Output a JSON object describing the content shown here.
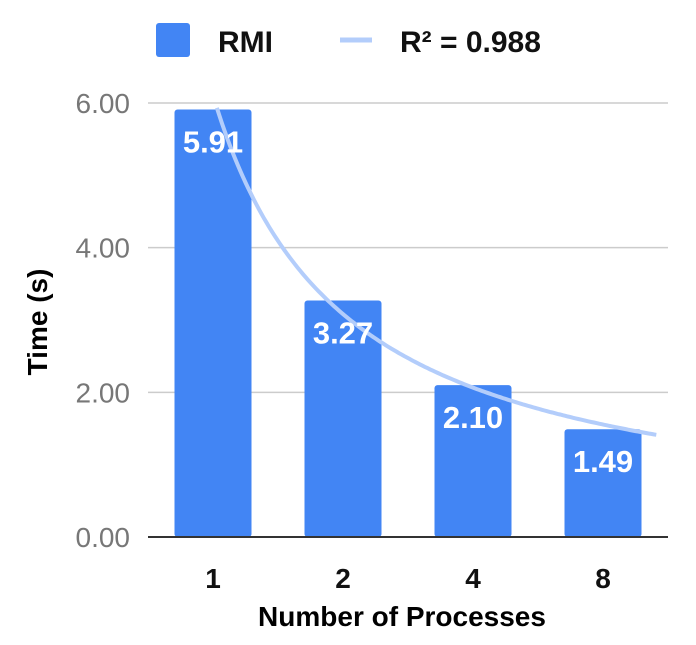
{
  "chart_data": {
    "type": "bar",
    "categories": [
      "1",
      "2",
      "4",
      "8"
    ],
    "series": [
      {
        "name": "RMI",
        "values": [
          5.91,
          3.27,
          2.1,
          1.49
        ],
        "data_labels": [
          "5.91",
          "3.27",
          "2.10",
          "1.49"
        ],
        "color": "#4285f4"
      }
    ],
    "trendline": {
      "label": "R² = 0.988",
      "color": "#b3cdfb",
      "type": "power"
    },
    "xlabel": "Number of Processes",
    "ylabel": "Time (s)",
    "ylim": [
      0,
      6
    ],
    "yticks": [
      "0.00",
      "2.00",
      "4.00",
      "6.00"
    ],
    "grid": true,
    "legend_position": "top"
  }
}
